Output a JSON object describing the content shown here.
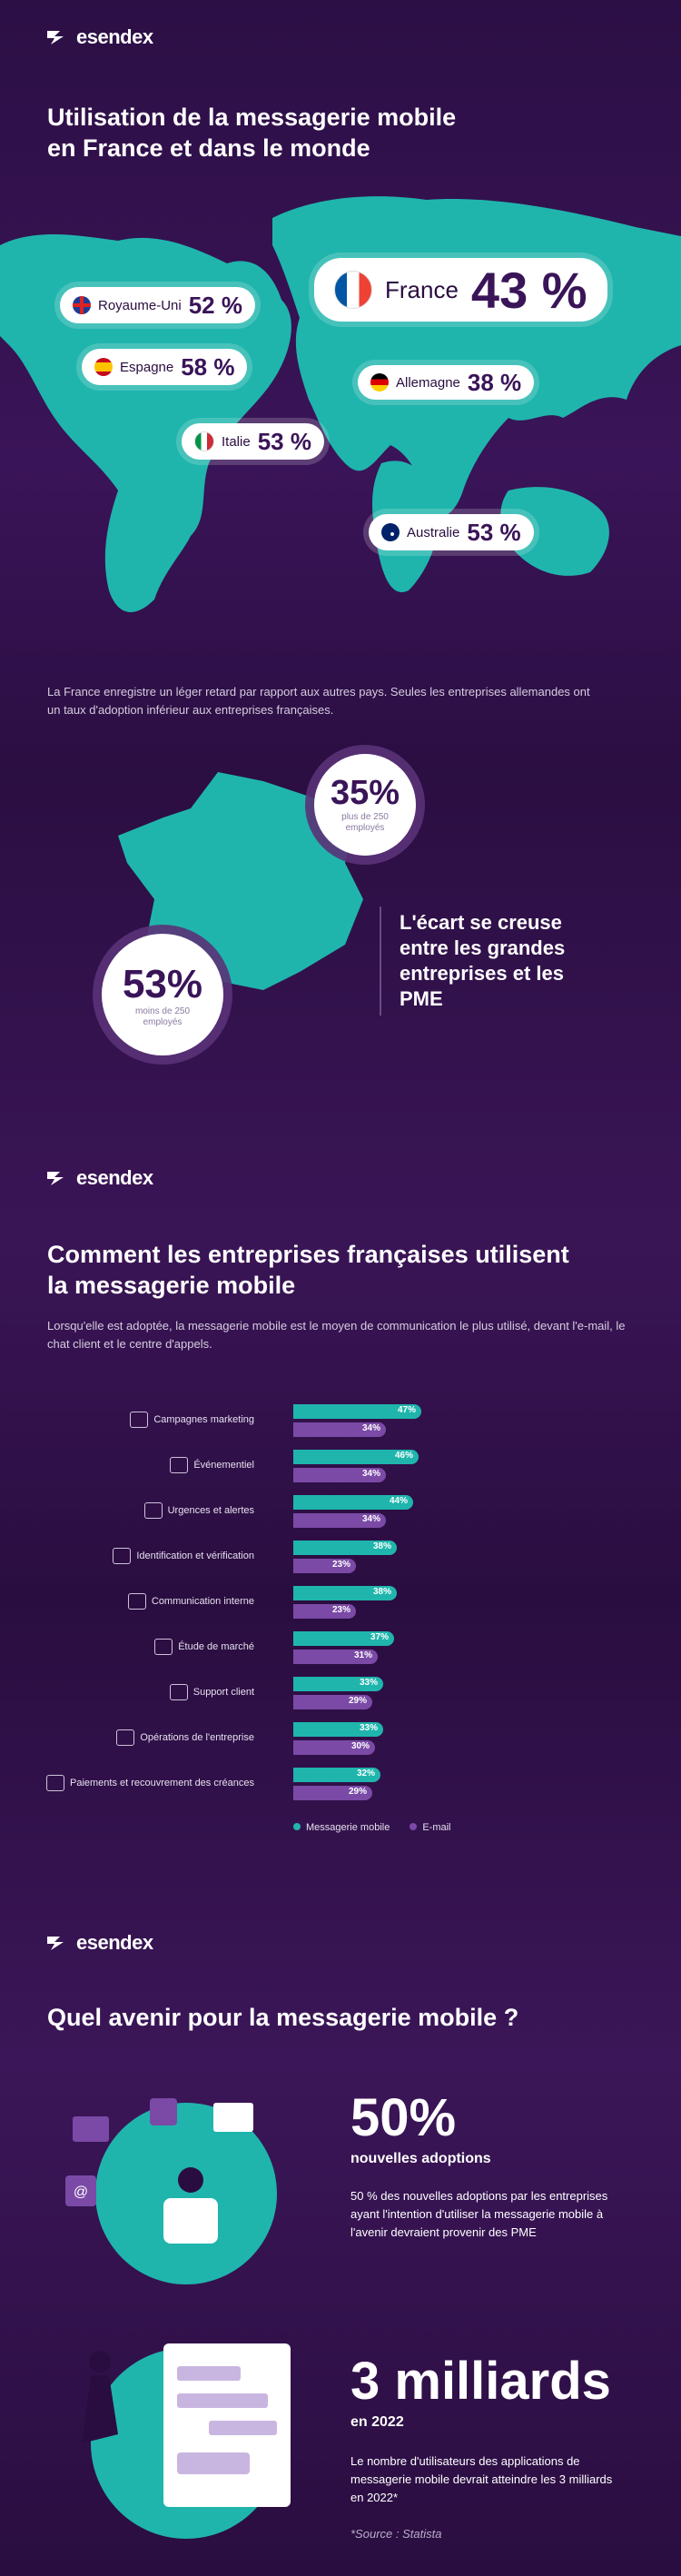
{
  "brand": {
    "name": "esendex"
  },
  "section1": {
    "title_line1": "Utilisation de la messagerie mobile",
    "title_line2": "en France et dans le monde",
    "countries": [
      {
        "name": "Royaume-Uni",
        "value": "52 %"
      },
      {
        "name": "Espagne",
        "value": "58 %"
      },
      {
        "name": "France",
        "value": "43 %"
      },
      {
        "name": "Allemagne",
        "value": "38 %"
      },
      {
        "name": "Italie",
        "value": "53 %"
      },
      {
        "name": "Australie",
        "value": "53 %"
      }
    ],
    "paragraph": "La France enregistre un léger retard par rapport aux autres pays. Seules les entreprises allemandes ont un taux d'adoption inférieur aux entreprises françaises.",
    "stat_large": {
      "value": "35%",
      "label": "plus de 250 employés"
    },
    "stat_small": {
      "value": "53%",
      "label": "moins de 250 employés"
    },
    "gap_text": "L'écart se creuse entre les grandes entreprises et les PME"
  },
  "section2": {
    "title_line1": "Comment les entreprises françaises utilisent",
    "title_line2": "la messagerie mobile",
    "paragraph": "Lorsqu'elle est adoptée, la messagerie mobile est le moyen de communication le plus utilisé, devant l'e-mail, le chat client et le centre d'appels."
  },
  "chart_data": {
    "type": "bar",
    "orientation": "horizontal",
    "categories": [
      "Campagnes marketing",
      "Événementiel",
      "Urgences et alertes",
      "Identification et vérification",
      "Communication interne",
      "Étude de marché",
      "Support client",
      "Opérations de l'entreprise",
      "Paiements et recouvrement des créances"
    ],
    "series": [
      {
        "name": "Messagerie mobile",
        "values": [
          47,
          46,
          44,
          38,
          38,
          37,
          33,
          33,
          32
        ],
        "color": "#1fb5ad"
      },
      {
        "name": "E-mail",
        "values": [
          34,
          34,
          34,
          23,
          23,
          31,
          29,
          30,
          29
        ],
        "color": "#7a4aa6"
      }
    ],
    "value_suffix": "%",
    "legend_position": "bottom"
  },
  "section3": {
    "title": "Quel avenir pour la messagerie mobile ?",
    "stat1": {
      "value": "50%",
      "label": "nouvelles adoptions",
      "text": "50 % des nouvelles adoptions par les entreprises ayant l'intention d'utiliser la messagerie mobile à l'avenir devraient provenir des PME"
    },
    "stat2": {
      "value": "3 milliards",
      "label": "en 2022",
      "text": "Le nombre d'utilisateurs des applications de messagerie mobile devrait atteindre les 3 milliards en 2022*",
      "source": "*Source : Statista"
    }
  },
  "colors": {
    "teal": "#1fb5ad",
    "purple": "#7a4aa6",
    "background": "#2c0f45"
  }
}
